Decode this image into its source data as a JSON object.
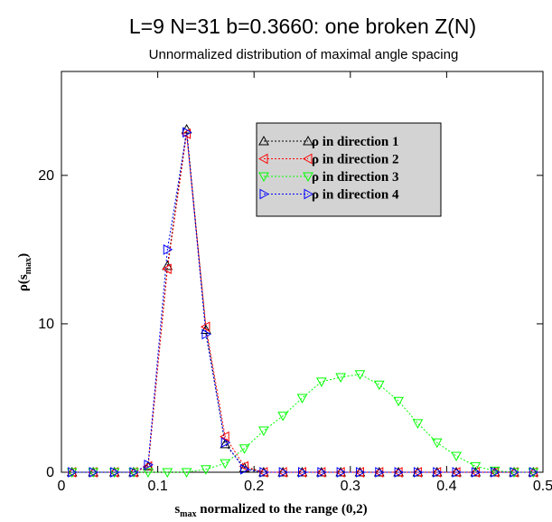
{
  "title": "L=9 N=31 b=0.3660:  one broken Z(N)",
  "subtitle": "Unnormalized distribution of maximal angle spacing",
  "chart_data": {
    "type": "line",
    "xlabel": {
      "main": "s",
      "sub": "max",
      "rest": " normalized to the range (0,2)"
    },
    "ylabel": {
      "main": "ρ(s",
      "sub": "max",
      "rest": ")"
    },
    "xlim": [
      0,
      0.5
    ],
    "ylim": [
      0,
      27
    ],
    "xticks": [
      0,
      0.1,
      0.2,
      0.3,
      0.4,
      0.5
    ],
    "xtick_labels": [
      "0",
      "0.1",
      "0.2",
      "0.3",
      "0.4",
      "0.5"
    ],
    "yticks": [
      0,
      10,
      20
    ],
    "ytick_labels": [
      "0",
      "10",
      "20"
    ],
    "grid": false,
    "legend_position": "top-right",
    "x": [
      0.011,
      0.033,
      0.055,
      0.075,
      0.09,
      0.11,
      0.13,
      0.15,
      0.17,
      0.19,
      0.21,
      0.23,
      0.25,
      0.27,
      0.29,
      0.31,
      0.33,
      0.35,
      0.37,
      0.39,
      0.41,
      0.43,
      0.45,
      0.47,
      0.49
    ],
    "series": [
      {
        "name": "ρ in direction 1",
        "marker": "triangle-up",
        "color": "#000000",
        "values": [
          0,
          0,
          0,
          0,
          0.4,
          13.9,
          23.1,
          9.6,
          1.9,
          0.3,
          0,
          0,
          0,
          0,
          0,
          0,
          0,
          0,
          0,
          0,
          0,
          0,
          0,
          0,
          0
        ]
      },
      {
        "name": "ρ in direction 2",
        "marker": "triangle-left",
        "color": "#ff0000",
        "values": [
          0,
          0,
          0,
          0,
          0.4,
          13.7,
          22.8,
          9.8,
          2.4,
          0.4,
          0,
          0,
          0,
          0,
          0,
          0,
          0,
          0,
          0,
          0,
          0,
          0,
          0,
          0,
          0
        ]
      },
      {
        "name": "ρ in direction 3",
        "marker": "triangle-down",
        "color": "#00ff00",
        "values": [
          0,
          0,
          0,
          0,
          0,
          0,
          0,
          0.2,
          0.6,
          1.6,
          2.8,
          3.8,
          5.0,
          6.1,
          6.4,
          6.6,
          5.9,
          4.8,
          3.3,
          2.0,
          1.1,
          0.4,
          0.1,
          0,
          0
        ]
      },
      {
        "name": "ρ in direction 4",
        "marker": "triangle-right",
        "color": "#0000ff",
        "values": [
          0,
          0,
          0,
          0,
          0.5,
          15.0,
          22.9,
          9.3,
          2.0,
          0.2,
          0,
          0,
          0,
          0,
          0,
          0,
          0,
          0,
          0,
          0,
          0,
          0,
          0,
          0,
          0
        ]
      }
    ]
  }
}
